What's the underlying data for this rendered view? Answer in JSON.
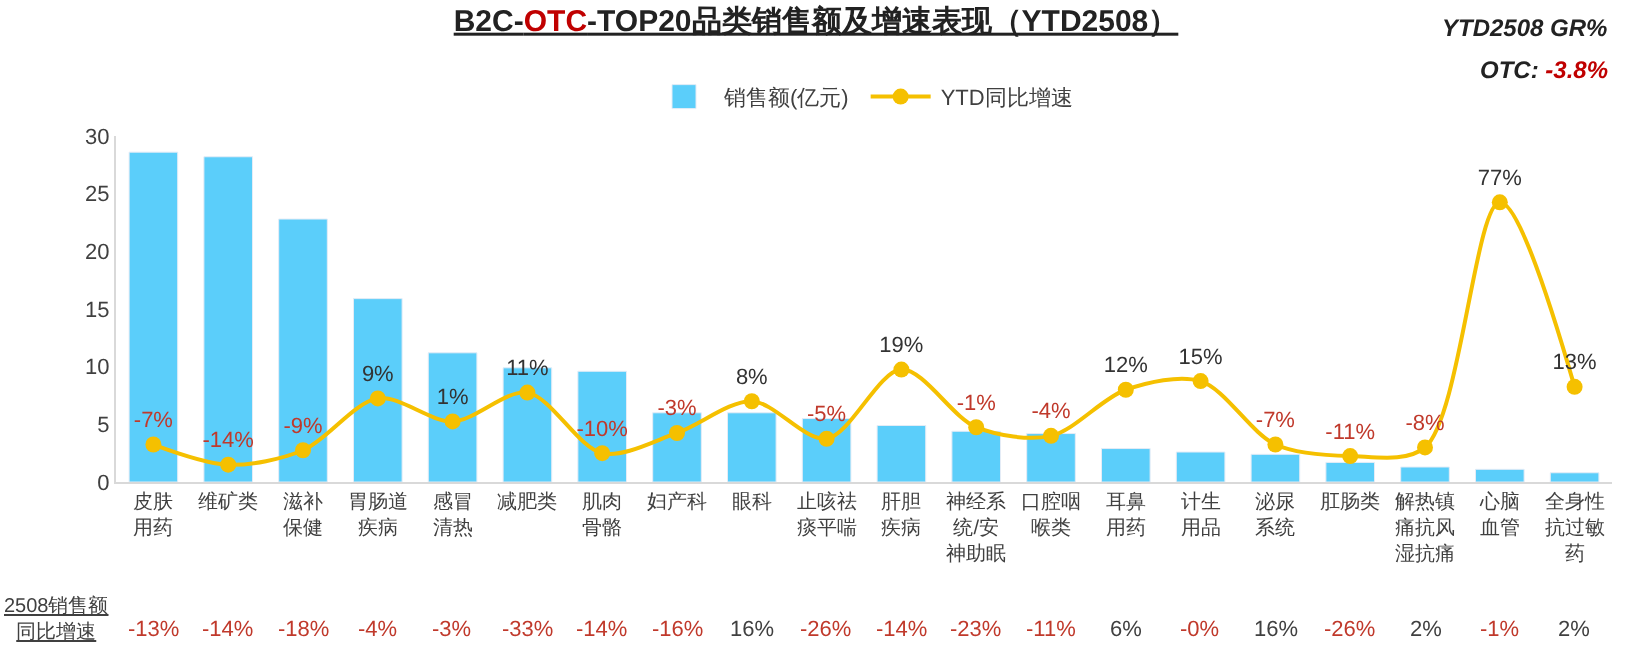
{
  "chart_data": {
    "type": "bar",
    "title": "B2C-OTC-TOP20品类销售额及增速表现（YTD2508）",
    "categories": [
      "皮肤用药",
      "维矿类",
      "滋补保健",
      "胃肠道疾病",
      "感冒清热",
      "减肥类",
      "肌肉骨骼",
      "妇产科",
      "眼科",
      "止咳祛痰平喘",
      "肝胆疾病",
      "神经系统/安神助眠",
      "口腔咽喉类",
      "耳鼻用药",
      "计生用品",
      "泌尿系统",
      "肛肠类",
      "解热镇痛抗风湿抗痛",
      "心脑血管",
      "全身性抗过敏药"
    ],
    "series": [
      {
        "name": "销售额(亿元)",
        "color": "#5bcefa",
        "values": [
          28.6,
          28.2,
          22.8,
          15.9,
          11.2,
          9.9,
          9.6,
          6.0,
          6.0,
          5.5,
          4.9,
          4.4,
          4.2,
          2.9,
          2.6,
          2.4,
          1.7,
          1.3,
          1.1,
          0.8
        ]
      },
      {
        "name": "YTD同比增速",
        "type": "line",
        "axis": "y2",
        "color": "#f5c000",
        "values": [
          -7,
          -14,
          -9,
          9,
          1,
          11,
          -10,
          -3,
          8,
          -5,
          19,
          -1,
          -4,
          12,
          15,
          -7,
          -11,
          -8,
          77,
          13
        ],
        "value_labels": [
          "-7%",
          "-14%",
          "-9%",
          "9%",
          "1%",
          "11%",
          "-10%",
          "-3%",
          "8%",
          "-5%",
          "19%",
          "-1%",
          "-4%",
          "12%",
          "15%",
          "-7%",
          "-11%",
          "-8%",
          "77%",
          "13%"
        ]
      }
    ],
    "ylim": [
      0,
      30
    ],
    "yticks": [
      0,
      5,
      10,
      15,
      20,
      25,
      30
    ],
    "y2lim": [
      -20,
      100
    ],
    "marker": "circle",
    "line_style": "solid",
    "legend": "top",
    "annotations": [
      "YTD2508 GR%",
      "OTC: -3.8%",
      "2508销售额同比增速",
      "-13%",
      "-14%",
      "-18%",
      "-4%",
      "-3%",
      "-33%",
      "-14%",
      "-16%",
      "16%",
      "-26%",
      "-14%",
      "-23%",
      "-11%",
      "6%",
      "-0%",
      "16%",
      "-26%",
      "2%",
      "-1%",
      "2%"
    ]
  }
}
